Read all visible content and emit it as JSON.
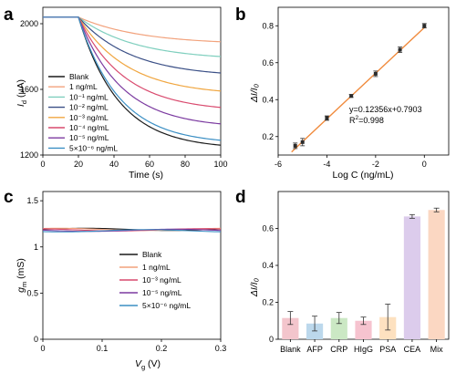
{
  "panels": {
    "a": "a",
    "b": "b",
    "c": "c",
    "d": "d"
  },
  "chart_data": [
    {
      "panel": "a",
      "type": "line",
      "xlabel": "Time (s)",
      "ylabel_main": "I",
      "ylabel_sub": "d",
      "ylabel_unit": " (μA)",
      "xlim": [
        0,
        100
      ],
      "ylim": [
        1200,
        2100
      ],
      "xticks": [
        0,
        20,
        40,
        60,
        80,
        100
      ],
      "yticks": [
        1200,
        1600,
        2000
      ],
      "baseline": 2040,
      "switch_time": 20,
      "legend_location": "bottom-left",
      "series": [
        {
          "name": "Blank",
          "color": "#1a1a1a",
          "end_value": 1260
        },
        {
          "name": "1 ng/mL",
          "color": "#f2a27c",
          "end_value": 1890
        },
        {
          "name": "10⁻¹ ng/mL",
          "color": "#7fcfbe",
          "end_value": 1800
        },
        {
          "name": "10⁻² ng/mL",
          "color": "#3a4f86",
          "end_value": 1700
        },
        {
          "name": "10⁻³ ng/mL",
          "color": "#f0a640",
          "end_value": 1590
        },
        {
          "name": "10⁻⁴ ng/mL",
          "color": "#d94a6e",
          "end_value": 1490
        },
        {
          "name": "10⁻⁵ ng/mL",
          "color": "#7b3aa0",
          "end_value": 1390
        },
        {
          "name": "5×10⁻⁶ ng/mL",
          "color": "#3b8fc4",
          "end_value": 1290
        }
      ]
    },
    {
      "panel": "b",
      "type": "scatter",
      "xlabel": "Log C (ng/mL)",
      "ylabel": "ΔI/I₀",
      "xlim": [
        -6,
        1
      ],
      "ylim": [
        0.1,
        0.9
      ],
      "xticks": [
        -6,
        -4,
        -2,
        0
      ],
      "yticks": [
        0.2,
        0.4,
        0.6,
        0.8
      ],
      "x": [
        -5.3,
        -5,
        -4,
        -3,
        -2,
        -1,
        0
      ],
      "y": [
        0.15,
        0.17,
        0.3,
        0.42,
        0.54,
        0.67,
        0.8
      ],
      "err": [
        0.015,
        0.02,
        0.012,
        0.008,
        0.015,
        0.015,
        0.012
      ],
      "fit": {
        "slope": 0.12356,
        "intercept": 0.7903
      },
      "equation": "y=0.12356x+0.7903",
      "r2_main": "R",
      "r2_sup": "2",
      "r2_rest": "=0.998",
      "marker_color": "#2b2b2b",
      "line_color": "#f08a3c"
    },
    {
      "panel": "c",
      "type": "line",
      "xlabel_main": "V",
      "xlabel_sub": "g",
      "xlabel_unit": " (V)",
      "ylabel_main": "g",
      "ylabel_sub": "m",
      "ylabel_unit": " (mS)",
      "xlim": [
        0,
        0.3
      ],
      "ylim": [
        0,
        1.6
      ],
      "xticks": [
        0,
        0.1,
        0.2,
        0.3
      ],
      "yticks": [
        0,
        0.5,
        1.0,
        1.5
      ],
      "legend_location": "center-right",
      "series": [
        {
          "name": "Blank",
          "color": "#1a1a1a",
          "value": 1.19
        },
        {
          "name": "1 ng/mL",
          "color": "#f2a27c",
          "value": 1.19
        },
        {
          "name": "10⁻³ ng/mL",
          "color": "#d94a6e",
          "value": 1.185
        },
        {
          "name": "10⁻⁵ ng/mL",
          "color": "#7b3aa0",
          "value": 1.18
        },
        {
          "name": "5×10⁻⁶ ng/mL",
          "color": "#3b8fc4",
          "value": 1.175
        }
      ]
    },
    {
      "panel": "d",
      "type": "bar",
      "ylabel": "ΔI/I₀",
      "ylim": [
        0,
        0.8
      ],
      "yticks": [
        0,
        0.2,
        0.4,
        0.6
      ],
      "categories": [
        "Blank",
        "AFP",
        "CRP",
        "HIgG",
        "PSA",
        "CEA",
        "Mix"
      ],
      "values": [
        0.115,
        0.085,
        0.115,
        0.1,
        0.12,
        0.665,
        0.7
      ],
      "err": [
        0.035,
        0.04,
        0.03,
        0.02,
        0.07,
        0.01,
        0.01
      ],
      "colors": [
        "#f3c5cc",
        "#bcd8ec",
        "#cbe8c4",
        "#f6c3cf",
        "#fde1c0",
        "#dcccec",
        "#fbd7c2"
      ]
    }
  ]
}
